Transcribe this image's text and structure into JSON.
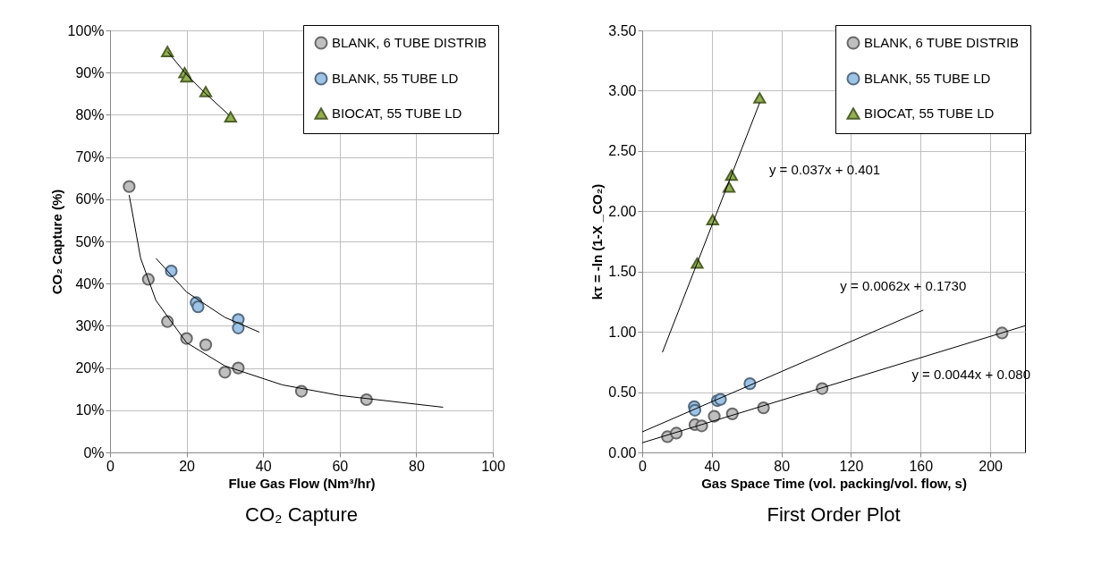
{
  "chart_data": [
    {
      "type": "scatter",
      "title": "CO₂ Capture",
      "xlabel": "Flue Gas Flow (Nm³/hr)",
      "ylabel": "CO₂ Capture  (%)",
      "xlim": [
        0,
        100
      ],
      "xticks": [
        0,
        20,
        40,
        60,
        80,
        100
      ],
      "ylim": [
        0,
        100
      ],
      "yticks": [
        {
          "value": 0,
          "label": "0%"
        },
        {
          "value": 10,
          "label": "10%"
        },
        {
          "value": 20,
          "label": "20%"
        },
        {
          "value": 30,
          "label": "30%"
        },
        {
          "value": 40,
          "label": "40%"
        },
        {
          "value": 50,
          "label": "50%"
        },
        {
          "value": 60,
          "label": "60%"
        },
        {
          "value": 70,
          "label": "70%"
        },
        {
          "value": 80,
          "label": "80%"
        },
        {
          "value": 90,
          "label": "90%"
        },
        {
          "value": 100,
          "label": "100%"
        }
      ],
      "grid": true,
      "legend": "top right",
      "series": [
        {
          "name": "BLANK, 6 TUBE DISTRIB",
          "color": "#bfbfbf",
          "marker": "circle",
          "x": [
            5,
            10,
            15,
            20,
            25,
            30,
            33.5,
            50,
            67
          ],
          "values": [
            63,
            41,
            31,
            27,
            25.5,
            19,
            20,
            14.5,
            12.5
          ]
        },
        {
          "name": "BLANK, 55 TUBE LD",
          "color": "#9dc3e6",
          "marker": "circle",
          "x": [
            16,
            22.5,
            23,
            33.5,
            33.5
          ],
          "values": [
            43,
            35.5,
            34.5,
            31.5,
            29.5
          ]
        },
        {
          "name": "BIOCAT, 55 TUBE LD",
          "color": "#92b050",
          "marker": "triangle",
          "x": [
            15,
            19.5,
            20,
            25,
            31.5
          ],
          "values": [
            95,
            90,
            89,
            85.5,
            79.5
          ]
        },
        {
          "type": "line",
          "color": "#000000",
          "marker": "none",
          "x": [
            5,
            8,
            12,
            20,
            30,
            45,
            60,
            87
          ],
          "values": [
            61,
            46,
            36,
            26,
            20.5,
            16,
            13.5,
            10.7
          ]
        },
        {
          "type": "line",
          "color": "#000000",
          "marker": "none",
          "x": [
            12,
            20,
            30,
            39
          ],
          "values": [
            46,
            38,
            32,
            28.5
          ]
        },
        {
          "type": "line",
          "color": "#000000",
          "marker": "none",
          "x": [
            15,
            20,
            25,
            31
          ],
          "values": [
            95,
            89.5,
            85,
            80
          ]
        }
      ]
    },
    {
      "type": "scatter",
      "title": "First Order Plot",
      "xlabel": "Gas Space Time (vol. packing/vol. flow, s)",
      "ylabel": "kτ = -ln (1-X _CO₂)",
      "xlim": [
        0,
        220
      ],
      "xticks": [
        0,
        40,
        80,
        120,
        160,
        200
      ],
      "ylim": [
        0,
        3.5
      ],
      "yticks": [
        {
          "value": 0,
          "label": "0.00"
        },
        {
          "value": 0.5,
          "label": "0.50"
        },
        {
          "value": 1,
          "label": "1.00"
        },
        {
          "value": 1.5,
          "label": "1.50"
        },
        {
          "value": 2,
          "label": "2.00"
        },
        {
          "value": 2.5,
          "label": "2.50"
        },
        {
          "value": 3,
          "label": "3.00"
        },
        {
          "value": 3.5,
          "label": "3.50"
        }
      ],
      "grid": true,
      "legend": "top right",
      "series": [
        {
          "name": "BLANK, 6 TUBE DISTRIB",
          "color": "#bfbfbf",
          "marker": "circle",
          "x": [
            14.5,
            19.6,
            30.3,
            34.2,
            41.4,
            51.8,
            69.7,
            103.4,
            206.8
          ],
          "values": [
            0.13,
            0.16,
            0.23,
            0.22,
            0.3,
            0.32,
            0.37,
            0.53,
            0.99
          ]
        },
        {
          "name": "BLANK, 55 TUBE LD",
          "color": "#9dc3e6",
          "marker": "circle",
          "x": [
            29.9,
            30.3,
            43.2,
            45,
            61.9
          ],
          "values": [
            0.38,
            0.35,
            0.43,
            0.44,
            0.57
          ]
        },
        {
          "name": "BIOCAT, 55 TUBE LD",
          "color": "#92b050",
          "marker": "triangle",
          "x": [
            31.6,
            40.5,
            49.9,
            51.3,
            67.5
          ],
          "values": [
            1.57,
            1.93,
            2.2,
            2.3,
            2.94
          ]
        },
        {
          "type": "line",
          "color": "#000000",
          "marker": "none",
          "x": [
            11.6,
            67.5
          ],
          "values": [
            0.83,
            2.9
          ]
        },
        {
          "type": "line",
          "color": "#000000",
          "marker": "none",
          "x": [
            0,
            161.5
          ],
          "values": [
            0.17,
            1.18
          ]
        },
        {
          "type": "line",
          "color": "#000000",
          "marker": "none",
          "x": [
            0,
            220
          ],
          "values": [
            0.08,
            1.05
          ]
        }
      ],
      "annotations": [
        {
          "text": "y = 0.037x + 0.401",
          "x": 52.4,
          "y": 2.34
        },
        {
          "text": "y = 0.0062x + 0.1730",
          "x": 150,
          "y": 1.11
        },
        {
          "text": "y = 0.0044x + 0.080",
          "x": 189,
          "y": 0.91
        }
      ]
    }
  ]
}
